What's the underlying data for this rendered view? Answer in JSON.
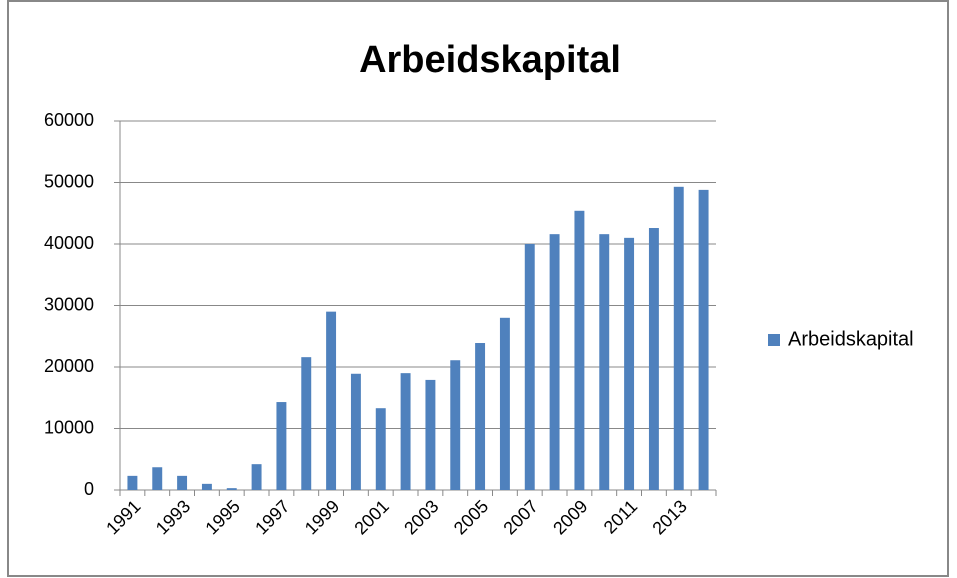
{
  "chart_data": {
    "type": "bar",
    "title": "Arbeidskapital",
    "categories": [
      "1991",
      null,
      "1993",
      null,
      "1995",
      null,
      "1997",
      null,
      "1999",
      null,
      "2001",
      null,
      "2003",
      null,
      "2005",
      null,
      "2007",
      null,
      "2009",
      null,
      "2011",
      null,
      "2013",
      null
    ],
    "series": [
      {
        "name": "Arbeidskapital",
        "color": "#4f81bd",
        "values": [
          2300,
          3700,
          2300,
          1000,
          300,
          4200,
          14300,
          21600,
          29000,
          18900,
          13300,
          19000,
          17900,
          21100,
          23900,
          28000,
          40000,
          41600,
          45400,
          41600,
          41000,
          42600,
          49300,
          48800
        ]
      }
    ],
    "ylim": [
      0,
      60000
    ],
    "yticks": [
      0,
      10000,
      20000,
      30000,
      40000,
      50000,
      60000
    ],
    "grid": true,
    "legend": "right"
  }
}
